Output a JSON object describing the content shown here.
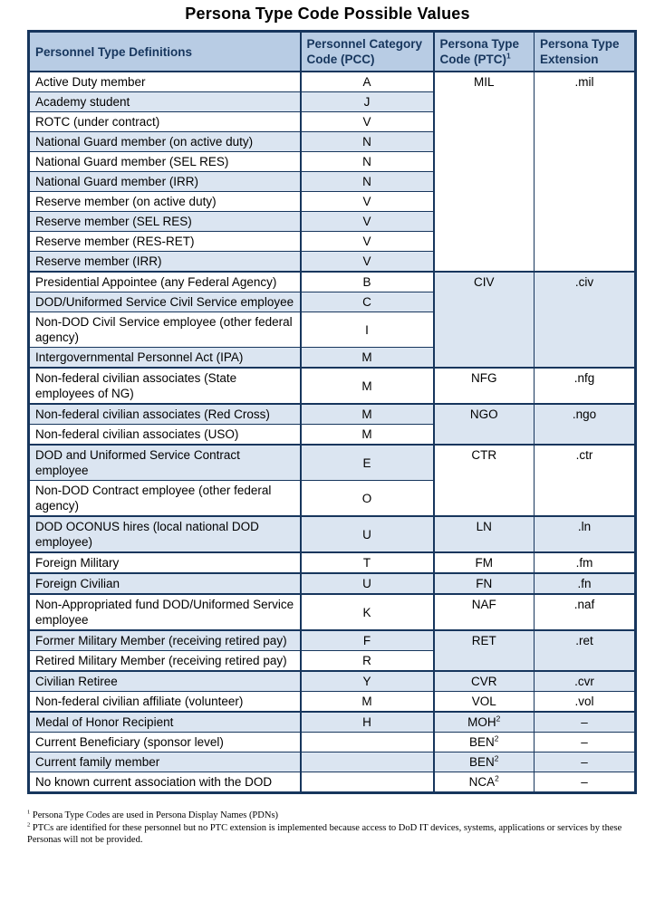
{
  "page": {
    "title": "Persona Type Code Possible Values"
  },
  "table": {
    "headers": [
      {
        "label": "Personnel Type Definitions",
        "sup": ""
      },
      {
        "label": "Personnel Category Code (PCC)",
        "sup": ""
      },
      {
        "label": "Persona Type Code (PTC)",
        "sup": "1"
      },
      {
        "label": "Persona Type Extension",
        "sup": ""
      }
    ],
    "groups": [
      {
        "ptc": "MIL",
        "ptc_sup": "",
        "ext": ".mil",
        "shade": "white",
        "sep_before": false,
        "rows": [
          {
            "def": "Active Duty member",
            "pcc": "A"
          },
          {
            "def": "Academy student",
            "pcc": "J"
          },
          {
            "def": "ROTC (under contract)",
            "pcc": "V"
          },
          {
            "def": "National Guard member (on active duty)",
            "pcc": "N"
          },
          {
            "def": "National Guard member (SEL RES)",
            "pcc": "N"
          },
          {
            "def": "National Guard member (IRR)",
            "pcc": "N"
          },
          {
            "def": "Reserve member (on active duty)",
            "pcc": "V"
          },
          {
            "def": "Reserve member (SEL RES)",
            "pcc": "V"
          },
          {
            "def": "Reserve member (RES-RET)",
            "pcc": "V"
          },
          {
            "def": "Reserve member (IRR)",
            "pcc": "V"
          }
        ]
      },
      {
        "ptc": "CIV",
        "ptc_sup": "",
        "ext": ".civ",
        "shade": "blue",
        "sep_before": true,
        "rows": [
          {
            "def": "Presidential Appointee (any Federal Agency)",
            "pcc": "B"
          },
          {
            "def": "DOD/Uniformed Service Civil Service employee",
            "pcc": "C"
          },
          {
            "def": "Non-DOD Civil Service employee (other federal agency)",
            "pcc": "I"
          },
          {
            "def": "Intergovernmental Personnel Act (IPA)",
            "pcc": "M"
          }
        ]
      },
      {
        "ptc": "NFG",
        "ptc_sup": "",
        "ext": ".nfg",
        "shade": "white",
        "sep_before": true,
        "rows": [
          {
            "def": "Non-federal civilian associates (State employees of NG)",
            "pcc": "M"
          }
        ]
      },
      {
        "ptc": "NGO",
        "ptc_sup": "",
        "ext": ".ngo",
        "shade": "blue",
        "sep_before": true,
        "rows": [
          {
            "def": "Non-federal civilian associates (Red Cross)",
            "pcc": "M"
          },
          {
            "def": "Non-federal civilian associates (USO)",
            "pcc": "M"
          }
        ]
      },
      {
        "ptc": "CTR",
        "ptc_sup": "",
        "ext": ".ctr",
        "shade": "white",
        "sep_before": true,
        "rows": [
          {
            "def": "DOD and Uniformed Service Contract employee",
            "pcc": "E"
          },
          {
            "def": "Non-DOD Contract employee (other federal agency)",
            "pcc": "O"
          }
        ]
      },
      {
        "ptc": "LN",
        "ptc_sup": "",
        "ext": ".ln",
        "shade": "blue",
        "sep_before": true,
        "rows": [
          {
            "def": "DOD OCONUS hires (local national DOD employee)",
            "pcc": "U"
          }
        ]
      },
      {
        "ptc": "FM",
        "ptc_sup": "",
        "ext": ".fm",
        "shade": "white",
        "sep_before": true,
        "rows": [
          {
            "def": "Foreign Military",
            "pcc": "T"
          }
        ]
      },
      {
        "ptc": "FN",
        "ptc_sup": "",
        "ext": ".fn",
        "shade": "blue",
        "sep_before": true,
        "rows": [
          {
            "def": "Foreign Civilian",
            "pcc": "U"
          }
        ]
      },
      {
        "ptc": "NAF",
        "ptc_sup": "",
        "ext": ".naf",
        "shade": "white",
        "sep_before": true,
        "rows": [
          {
            "def": "Non-Appropriated fund DOD/Uniformed Service employee",
            "pcc": "K"
          }
        ]
      },
      {
        "ptc": "RET",
        "ptc_sup": "",
        "ext": ".ret",
        "shade": "blue",
        "sep_before": true,
        "rows": [
          {
            "def": "Former Military Member (receiving retired pay)",
            "pcc": "F"
          },
          {
            "def": "Retired Military Member (receiving retired pay)",
            "pcc": "R"
          }
        ]
      },
      {
        "ptc": "CVR",
        "ptc_sup": "",
        "ext": ".cvr",
        "shade": "blue",
        "sep_before": true,
        "rows": [
          {
            "def": "Civilian Retiree",
            "pcc": "Y"
          }
        ]
      },
      {
        "ptc": "VOL",
        "ptc_sup": "",
        "ext": ".vol",
        "shade": "white",
        "sep_before": false,
        "rows": [
          {
            "def": "Non-federal civilian affiliate (volunteer)",
            "pcc": "M"
          }
        ]
      },
      {
        "ptc": "MOH",
        "ptc_sup": "2",
        "ext": "–",
        "shade": "blue",
        "sep_before": true,
        "rows": [
          {
            "def": "Medal of Honor Recipient",
            "pcc": "H"
          }
        ]
      },
      {
        "ptc": "BEN",
        "ptc_sup": "2",
        "ext": "–",
        "shade": "white",
        "sep_before": false,
        "rows": [
          {
            "def": "Current Beneficiary (sponsor level)",
            "pcc": ""
          }
        ]
      },
      {
        "ptc": "BEN",
        "ptc_sup": "2",
        "ext": "–",
        "shade": "blue",
        "sep_before": false,
        "rows": [
          {
            "def": "Current family member",
            "pcc": ""
          }
        ]
      },
      {
        "ptc": "NCA",
        "ptc_sup": "2",
        "ext": "–",
        "shade": "white",
        "sep_before": false,
        "rows": [
          {
            "def": "No known current association with the DOD",
            "pcc": ""
          }
        ]
      }
    ]
  },
  "footnotes": [
    {
      "sup": "1",
      "text": " Persona Type Codes are used in Persona Display Names (PDNs)"
    },
    {
      "sup": "2",
      "text": " PTCs are identified for these personnel but no PTC extension is implemented because access to DoD IT devices, systems, applications or services by these Personas will not be provided."
    }
  ],
  "colors": {
    "border": "#17365d",
    "header_bg": "#b8cce4",
    "band_bg": "#dbe5f1",
    "header_text": "#17365d"
  }
}
